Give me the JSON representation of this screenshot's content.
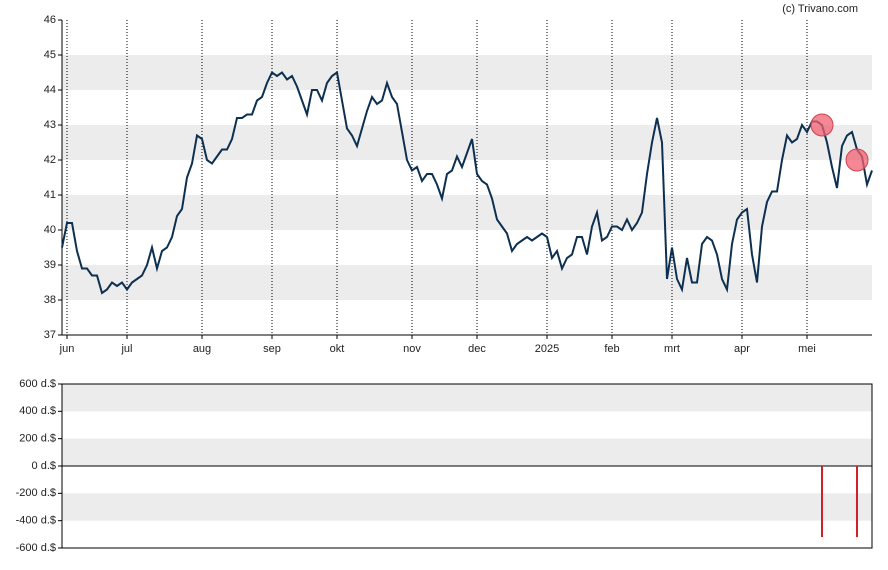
{
  "chart_data": [
    {
      "type": "line",
      "annotation": "(c) Trivano.com",
      "xlim": [
        0,
        162
      ],
      "xticks": [
        {
          "value": 1,
          "label": "jun"
        },
        {
          "value": 13,
          "label": "jul"
        },
        {
          "value": 28,
          "label": "aug"
        },
        {
          "value": 42,
          "label": "sep"
        },
        {
          "value": 55,
          "label": "okt"
        },
        {
          "value": 70,
          "label": "nov"
        },
        {
          "value": 83,
          "label": "dec"
        },
        {
          "value": 97,
          "label": "2025"
        },
        {
          "value": 110,
          "label": "feb"
        },
        {
          "value": 122,
          "label": "mrt"
        },
        {
          "value": 136,
          "label": "apr"
        },
        {
          "value": 149,
          "label": "mei"
        }
      ],
      "ylim": [
        37,
        46
      ],
      "yticks": [
        37,
        38,
        39,
        40,
        41,
        42,
        43,
        44,
        45,
        46
      ],
      "series": [
        {
          "color": "#0d3050",
          "values": [
            39.5,
            40.2,
            40.2,
            39.4,
            38.9,
            38.9,
            38.7,
            38.7,
            38.2,
            38.3,
            38.5,
            38.4,
            38.5,
            38.3,
            38.5,
            38.6,
            38.7,
            39.0,
            39.5,
            38.9,
            39.4,
            39.5,
            39.8,
            40.4,
            40.6,
            41.5,
            41.9,
            42.7,
            42.6,
            42.0,
            41.9,
            42.1,
            42.3,
            42.3,
            42.6,
            43.2,
            43.2,
            43.3,
            43.3,
            43.7,
            43.8,
            44.2,
            44.5,
            44.4,
            44.5,
            44.3,
            44.4,
            44.1,
            43.7,
            43.3,
            44.0,
            44.0,
            43.7,
            44.2,
            44.4,
            44.5,
            43.7,
            42.9,
            42.7,
            42.4,
            42.9,
            43.4,
            43.8,
            43.6,
            43.7,
            44.2,
            43.8,
            43.6,
            42.8,
            42.0,
            41.7,
            41.8,
            41.4,
            41.6,
            41.6,
            41.3,
            40.9,
            41.6,
            41.7,
            42.1,
            41.8,
            42.2,
            42.6,
            41.6,
            41.4,
            41.3,
            40.9,
            40.3,
            40.1,
            39.9,
            39.4,
            39.6,
            39.7,
            39.8,
            39.7,
            39.8,
            39.9,
            39.8,
            39.2,
            39.4,
            38.9,
            39.2,
            39.3,
            39.8,
            39.8,
            39.3,
            40.1,
            40.5,
            39.7,
            39.8,
            40.1,
            40.1,
            40.0,
            40.3,
            40.0,
            40.2,
            40.5,
            41.6,
            42.5,
            43.2,
            42.5,
            38.6,
            39.5,
            38.6,
            38.3,
            39.2,
            38.5,
            38.5,
            39.6,
            39.8,
            39.7,
            39.3,
            38.6,
            38.3,
            39.6,
            40.3,
            40.5,
            40.6,
            39.3,
            38.5,
            40.1,
            40.8,
            41.1,
            41.1,
            42.0,
            42.7,
            42.5,
            42.6,
            43.0,
            42.8,
            43.1,
            43.1,
            43.0,
            42.5,
            41.8,
            41.2,
            42.4,
            42.7,
            42.8,
            42.3,
            42.1,
            41.3,
            41.7
          ]
        }
      ],
      "markers": {
        "color": "#f06070",
        "x": [
          152,
          159
        ],
        "values": [
          43.0,
          42.0
        ]
      },
      "grid": "bands"
    },
    {
      "type": "bar",
      "xlim": [
        0,
        162
      ],
      "ylim": [
        -600,
        600
      ],
      "yticks": [
        {
          "value": -600,
          "label": "-600 d.$"
        },
        {
          "value": -400,
          "label": "-400 d.$"
        },
        {
          "value": -200,
          "label": "-200 d.$"
        },
        {
          "value": 0,
          "label": "0 d.$"
        },
        {
          "value": 200,
          "label": "200 d.$"
        },
        {
          "value": 400,
          "label": "400 d.$"
        },
        {
          "value": 600,
          "label": "600 d.$"
        }
      ],
      "x": [
        152,
        159
      ],
      "values": [
        -520,
        -520
      ],
      "color": "#d0202a",
      "grid": "bands"
    }
  ]
}
